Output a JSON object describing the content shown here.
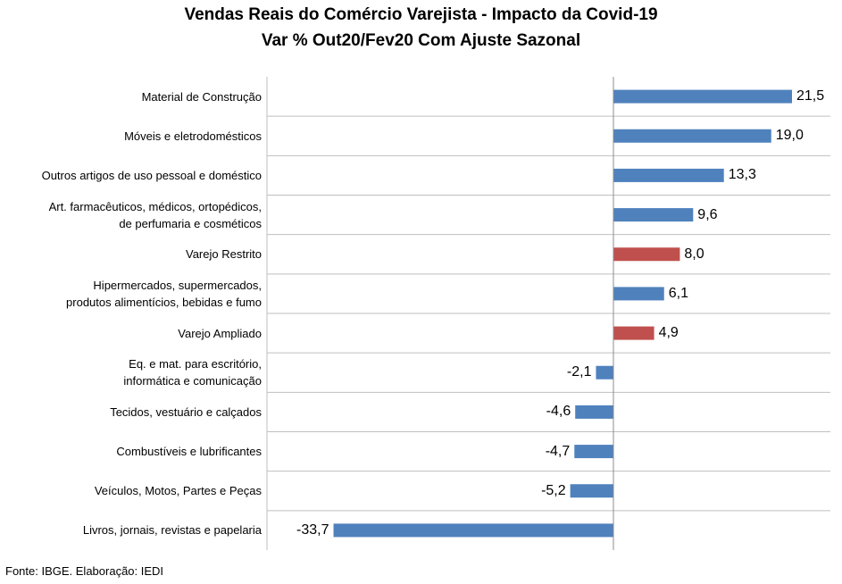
{
  "chart_data": {
    "type": "bar",
    "orientation": "horizontal",
    "title": "Vendas Reais do Comércio Varejista - Impacto da Covid-19",
    "subtitle": "Var % Out20/Fev20 Com Ajuste Sazonal",
    "categories": [
      "Material de Construção",
      "Móveis e eletrodomésticos",
      "Outros artigos de uso pessoal e doméstico",
      "Art. farmacêuticos, médicos, ortopédicos,\nde perfumaria e cosméticos",
      "Varejo Restrito",
      "Hipermercados, supermercados,\nprodutos alimentícios, bebidas e fumo",
      "Varejo Ampliado",
      "Eq. e mat. para escritório,\ninformática e comunicação",
      "Tecidos, vestuário e calçados",
      "Combustíveis e lubrificantes",
      "Veículos, Motos, Partes e Peças",
      "Livros, jornais, revistas e papelaria"
    ],
    "values": [
      21.5,
      19.0,
      13.3,
      9.6,
      8.0,
      6.1,
      4.9,
      -2.1,
      -4.6,
      -4.7,
      -5.2,
      -33.7
    ],
    "value_labels": [
      "21,5",
      "19,0",
      "13,3",
      "9,6",
      "8,0",
      "6,1",
      "4,9",
      "-2,1",
      "-4,6",
      "-4,7",
      "-5,2",
      "-33,7"
    ],
    "highlight": [
      false,
      false,
      false,
      false,
      true,
      false,
      true,
      false,
      false,
      false,
      false,
      false
    ],
    "xlim": [
      -40,
      25
    ],
    "colors": {
      "default": "#4f81bd",
      "highlight": "#c0504d",
      "grid": "#bfbfbf"
    },
    "grid": "horizontal row separators",
    "xlabel": "",
    "ylabel": ""
  },
  "source": "Fonte: IBGE. Elaboração: IEDI"
}
